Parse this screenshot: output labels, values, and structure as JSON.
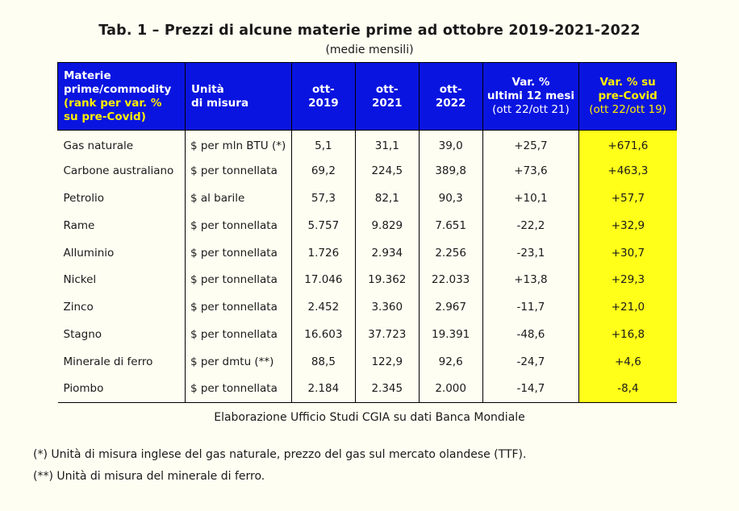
{
  "title": "Tab. 1 – Prezzi di alcune materie prime ad ottobre 2019-2021-2022",
  "subtitle": "(medie mensili)",
  "header": {
    "commodity_line1": "Materie",
    "commodity_line2": "prime/commodity",
    "commodity_rank1": "(rank per var. %",
    "commodity_rank2": "su pre-Covid)",
    "unit_line1": "Unità",
    "unit_line2": "di misura",
    "col2019_line1": "ott-",
    "col2019_line2": "2019",
    "col2021_line1": "ott-",
    "col2021_line2": "2021",
    "col2022_line1": "ott-",
    "col2022_line2": "2022",
    "var12_line1": "Var. %",
    "var12_line2": "ultimi 12 mesi",
    "var12_line3": "(ott 22/ott 21)",
    "varcovid_line1": "Var. % su",
    "varcovid_line2": "pre-Covid",
    "varcovid_line3": "(ott 22/ott 19)"
  },
  "rows": [
    {
      "name": "Gas naturale",
      "unit": "$ per mln BTU (*)",
      "v2019": "5,1",
      "v2021": "31,1",
      "v2022": "39,0",
      "var12": "+25,7",
      "varcovid": "+671,6"
    },
    {
      "name": "Carbone australiano",
      "unit": "$ per tonnellata",
      "v2019": "69,2",
      "v2021": "224,5",
      "v2022": "389,8",
      "var12": "+73,6",
      "varcovid": "+463,3"
    },
    {
      "name": "Petrolio",
      "unit": "$ al barile",
      "v2019": "57,3",
      "v2021": "82,1",
      "v2022": "90,3",
      "var12": "+10,1",
      "varcovid": "+57,7"
    },
    {
      "name": "Rame",
      "unit": "$ per tonnellata",
      "v2019": "5.757",
      "v2021": "9.829",
      "v2022": "7.651",
      "var12": "-22,2",
      "varcovid": "+32,9"
    },
    {
      "name": "Alluminio",
      "unit": "$ per tonnellata",
      "v2019": "1.726",
      "v2021": "2.934",
      "v2022": "2.256",
      "var12": "-23,1",
      "varcovid": "+30,7"
    },
    {
      "name": "Nickel",
      "unit": "$ per tonnellata",
      "v2019": "17.046",
      "v2021": "19.362",
      "v2022": "22.033",
      "var12": "+13,8",
      "varcovid": "+29,3"
    },
    {
      "name": "Zinco",
      "unit": "$ per tonnellata",
      "v2019": "2.452",
      "v2021": "3.360",
      "v2022": "2.967",
      "var12": "-11,7",
      "varcovid": "+21,0"
    },
    {
      "name": "Stagno",
      "unit": "$ per tonnellata",
      "v2019": "16.603",
      "v2021": "37.723",
      "v2022": "19.391",
      "var12": "-48,6",
      "varcovid": "+16,8"
    },
    {
      "name": "Minerale di ferro",
      "unit": "$ per dmtu (**)",
      "v2019": "88,5",
      "v2021": "122,9",
      "v2022": "92,6",
      "var12": "-24,7",
      "varcovid": "+4,6"
    },
    {
      "name": "Piombo",
      "unit": "$ per tonnellata",
      "v2019": "2.184",
      "v2021": "2.345",
      "v2022": "2.000",
      "var12": "-14,7",
      "varcovid": "-8,4"
    }
  ],
  "source": "Elaborazione Ufficio Studi CGIA su dati Banca Mondiale",
  "notes": [
    "(*) Unità di misura inglese del gas naturale, prezzo del gas sul mercato olandese (TTF).",
    "(**) Unità di misura del minerale di ferro."
  ],
  "colors": {
    "header_bg": "#0a14e0",
    "header_text": "#ffffff",
    "header_highlight_text": "#ffef00",
    "highlight_column_bg": "#ffff1a",
    "page_bg": "#fffef2"
  }
}
